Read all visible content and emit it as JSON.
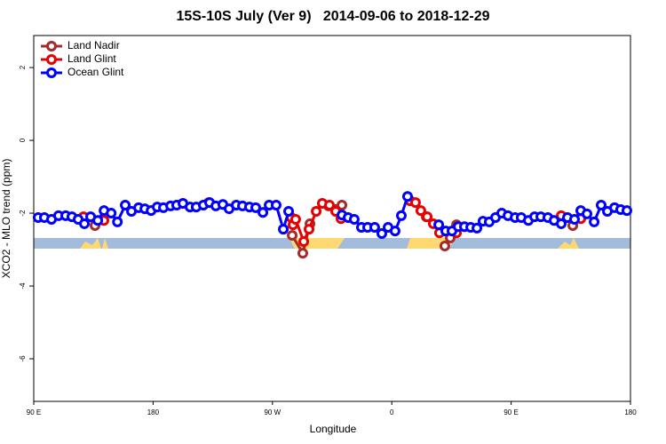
{
  "chart_data": {
    "type": "line",
    "title": "15S-10S July (Ver 9)   2014-09-06 to 2018-12-29",
    "x_label": "Longitude",
    "y_label": "XCO2 - MLO trend (ppm)",
    "xlim": [
      90,
      540
    ],
    "ylim": [
      -7.17,
      2.88
    ],
    "xticks": [
      {
        "value": 90,
        "label": "90 E"
      },
      {
        "value": 180,
        "label": "180"
      },
      {
        "value": 270,
        "label": "90 W"
      },
      {
        "value": 360,
        "label": "0"
      },
      {
        "value": 450,
        "label": "90 E"
      },
      {
        "value": 540,
        "label": "180"
      }
    ],
    "yticks": [
      2,
      0,
      -2,
      -4,
      -6
    ],
    "legend_position": "top-left",
    "series": [
      {
        "name": "Land Nadir",
        "color": "#a52a2a",
        "x": [
          136.2,
          null,
          284.9,
          292.9,
          298.3,
          null,
          312.3,
          322.4,
          null,
          386.0,
          null,
          400.0,
          404.1,
          408.8,
          null,
          496.5
        ],
        "values": [
          -2.34,
          null,
          -2.61,
          -3.1,
          -2.29,
          null,
          -1.8,
          -1.78,
          null,
          -2.1,
          null,
          -2.9,
          -2.68,
          -2.32,
          null,
          -2.34
        ]
      },
      {
        "name": "Land Glint",
        "color": "#e60000",
        "x": [
          127.5,
          null,
          142.9,
          null,
          222.0,
          null,
          284.2,
          285.5,
          287.5,
          293.6,
          297.6,
          303.0,
          307.6,
          313.0,
          317.7,
          321.7,
          null,
          373.9,
          377.9,
          381.9,
          386.7,
          391.3,
          396.0,
          null,
          408.8,
          null,
          487.8,
          null,
          502.5
        ],
        "values": [
          -2.1,
          null,
          -2.2,
          null,
          -1.71,
          null,
          -2.12,
          -2.32,
          -2.17,
          -2.78,
          -2.44,
          -1.95,
          -1.73,
          -1.78,
          -1.95,
          -2.15,
          null,
          -1.66,
          -1.71,
          -1.93,
          -2.1,
          -2.29,
          -2.54,
          null,
          -2.54,
          null,
          -2.07,
          null,
          -2.15
        ]
      },
      {
        "name": "Ocean Glint",
        "color": "#0000ff",
        "x": [
          93.3,
          98.0,
          103.4,
          108.7,
          114.1,
          118.8,
          123.5,
          128.2,
          132.9,
          138.3,
          143.0,
          148.4,
          153.1,
          159.0,
          163.7,
          169.1,
          173.8,
          178.5,
          183.1,
          187.8,
          193.2,
          197.8,
          202.5,
          207.9,
          212.5,
          217.9,
          222.6,
          227.3,
          232.6,
          237.3,
          242.7,
          247.4,
          252.7,
          257.4,
          262.8,
          267.5,
          272.8,
          278.2,
          282.2,
          null,
          322.4,
          327.1,
          331.7,
          337.1,
          341.8,
          347.1,
          352.5,
          357.2,
          362.5,
          367.2,
          371.9,
          null,
          395.4,
          400.7,
          405.4,
          410.1,
          414.8,
          419.5,
          424.2,
          428.8,
          433.5,
          438.2,
          442.9,
          447.6,
          453.0,
          457.6,
          463.0,
          467.7,
          472.4,
          477.7,
          482.4,
          487.8,
          492.5,
          497.8,
          502.5,
          507.2,
          512.6,
          517.9,
          522.6,
          528.0,
          532.6,
          537.3
        ],
        "values": [
          -2.12,
          -2.12,
          -2.17,
          -2.07,
          -2.07,
          -2.1,
          -2.17,
          -2.29,
          -2.1,
          -2.2,
          -1.93,
          -2.0,
          -2.24,
          -1.78,
          -1.95,
          -1.85,
          -1.88,
          -1.93,
          -1.83,
          -1.85,
          -1.8,
          -1.78,
          -1.73,
          -1.83,
          -1.83,
          -1.78,
          -1.71,
          -1.8,
          -1.76,
          -1.88,
          -1.78,
          -1.8,
          -1.83,
          -1.85,
          -1.98,
          -1.78,
          -1.78,
          -2.44,
          -1.95,
          null,
          -2.05,
          -2.12,
          -2.17,
          -2.39,
          -2.39,
          -2.39,
          -2.56,
          -2.39,
          -2.49,
          -2.07,
          -1.54,
          null,
          -2.32,
          -2.49,
          -2.49,
          -2.37,
          -2.37,
          -2.39,
          -2.41,
          -2.22,
          -2.24,
          -2.12,
          -2.0,
          -2.07,
          -2.12,
          -2.12,
          -2.2,
          -2.1,
          -2.1,
          -2.12,
          -2.2,
          -2.29,
          -2.12,
          -2.17,
          -1.93,
          -2.02,
          -2.24,
          -1.78,
          -1.95,
          -1.85,
          -1.9,
          -1.93
        ]
      }
    ]
  }
}
